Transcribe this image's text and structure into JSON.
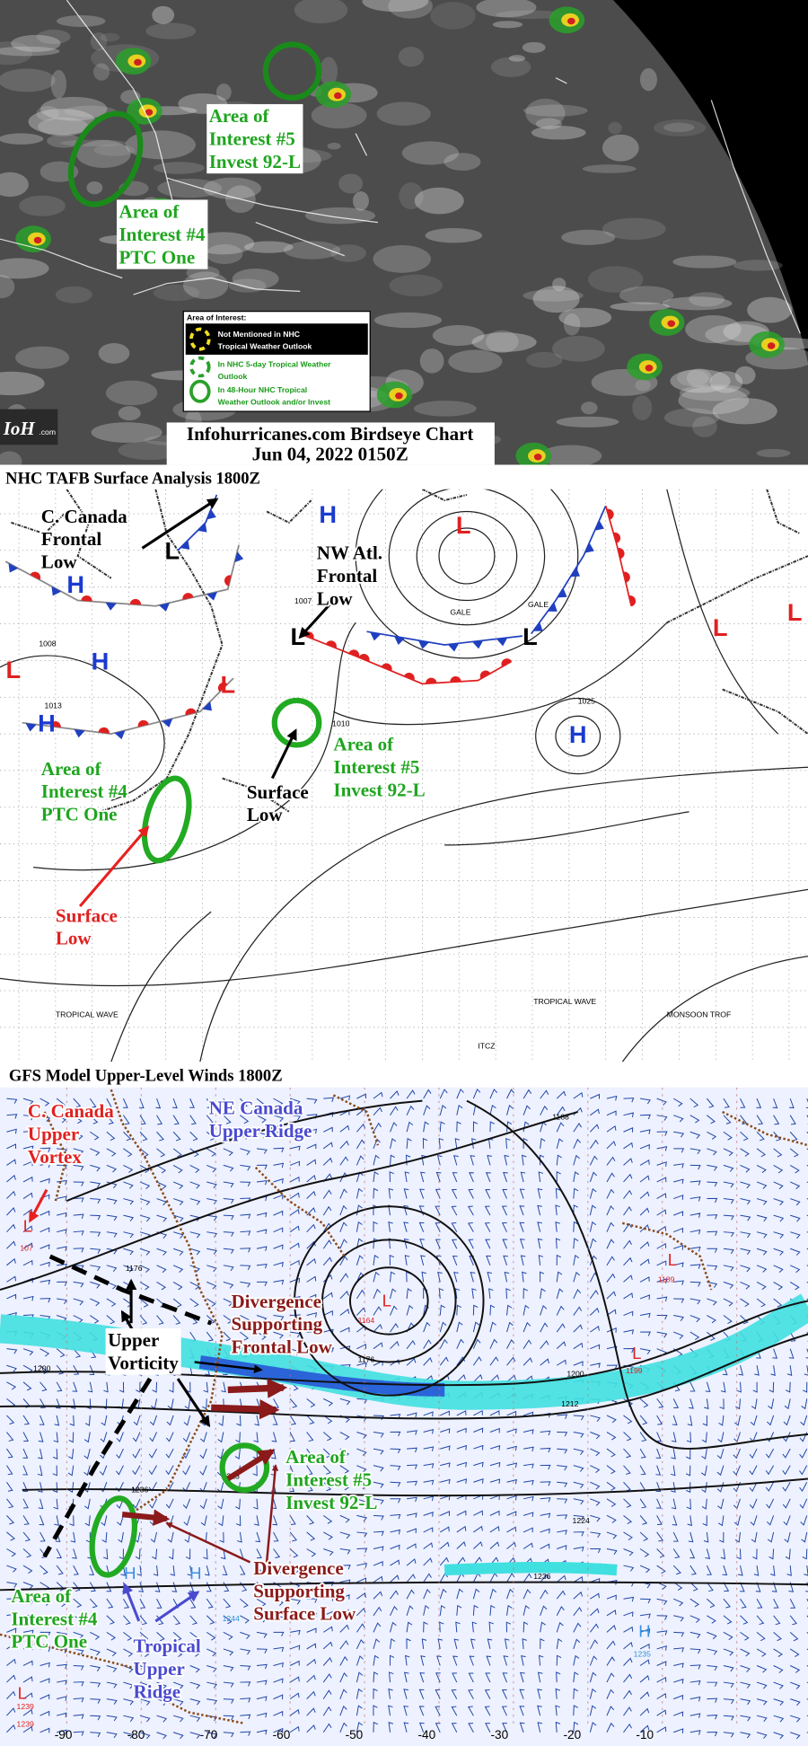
{
  "satellite": {
    "labels": [
      [
        "Area of",
        "Interest #5",
        "Invest 92-L"
      ],
      [
        "Area of",
        "Interest #4",
        "PTC One"
      ]
    ],
    "legend": {
      "title": "Area of Interest:",
      "items": [
        [
          "Not Mentioned in NHC",
          "Tropical Weather Outlook"
        ],
        [
          "In NHC 5-day Tropical Weather",
          "Outlook"
        ],
        [
          "In 48-Hour NHC Tropical",
          "Weather Outlook and/or Invest"
        ]
      ]
    },
    "logo": "IoH",
    "logo_suffix": ".com",
    "title": "Infohurricanes.com Birdseye Chart",
    "date": "Jun 04, 2022 0150Z"
  },
  "surface": {
    "title": "NHC TAFB Surface Analysis 1800Z",
    "labels": [
      [
        "C. Canada",
        "Frontal",
        "Low"
      ],
      [
        "NW Atl.",
        "Frontal",
        "Low"
      ],
      [
        "Area of",
        "Interest #5",
        "Invest 92-L"
      ],
      [
        "Area of",
        "Interest #4",
        "PTC One"
      ],
      [
        "Surface",
        "Low"
      ],
      [
        "Surface",
        "Low"
      ]
    ],
    "centers": [
      "H",
      "H",
      "H",
      "H",
      "H",
      "L",
      "L",
      "L",
      "L",
      "L",
      "L",
      "L",
      "L"
    ],
    "map_text": [
      "1007",
      "1010",
      "1025",
      "1013",
      "1008",
      "GALE",
      "GALE",
      "TROPICAL WAVE",
      "TROPICAL WAVE",
      "ITCZ",
      "MONSOON TROF"
    ]
  },
  "upper": {
    "title": "GFS Model Upper-Level Winds 1800Z",
    "labels": [
      [
        "C. Canada",
        "Upper",
        "Vortex"
      ],
      [
        "NE Canada",
        "Upper Ridge"
      ],
      [
        "Divergence",
        "Supporting",
        "Frontal Low"
      ],
      [
        "Upper",
        "Vorticity"
      ],
      [
        "Area of",
        "Interest #5",
        "Invest 92-L"
      ],
      [
        "Divergence",
        "Supporting",
        "Surface Low"
      ],
      [
        "Area of",
        "Interest #4",
        "PTC One"
      ],
      [
        "Tropical",
        "Upper",
        "Ridge"
      ]
    ],
    "centers": [
      "L",
      "L",
      "L",
      "L",
      "L",
      "H",
      "H",
      "H"
    ],
    "heights": [
      "1188",
      "1176",
      "1176",
      "1164",
      "1200",
      "1200",
      "1212",
      "1224",
      "1236",
      "1199",
      "1189",
      "1236",
      "1239",
      "1239",
      "1244",
      "1235",
      "1223",
      "107"
    ],
    "longitudes": [
      "-90",
      "-80",
      "-70",
      "-60",
      "-50",
      "-40",
      "-30",
      "-20",
      "-10"
    ]
  }
}
